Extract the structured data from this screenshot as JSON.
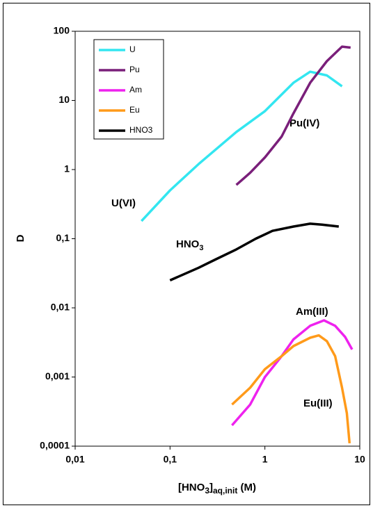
{
  "chart_data": {
    "type": "line",
    "log_x": true,
    "log_y": true,
    "xlabel": [
      "[HNO",
      "3",
      "]",
      "aq,init",
      " (M)"
    ],
    "ylabel": "D",
    "xlim": [
      0.01,
      10
    ],
    "xticks": [
      {
        "value": 0.01,
        "label": "0,01"
      },
      {
        "value": 0.1,
        "label": "0,1"
      },
      1,
      10
    ],
    "ylim": [
      0.0001,
      100
    ],
    "yticks": [
      {
        "value": 0.0001,
        "label": "0,0001"
      },
      {
        "value": 0.001,
        "label": "0,001"
      },
      {
        "value": 0.01,
        "label": "0,01"
      },
      {
        "value": 0.1,
        "label": "0,1"
      },
      1,
      10,
      100
    ],
    "annotations": [
      "U(VI)",
      "Pu(IV)",
      [
        "HNO",
        "3"
      ],
      "Am(III)",
      "Eu(III)"
    ],
    "series": [
      {
        "name": "U",
        "color": "#33e6f0",
        "x": [
          0.05,
          0.1,
          0.2,
          0.5,
          1,
          2,
          3,
          4.5,
          6.5
        ],
        "values": [
          0.18,
          0.5,
          1.2,
          3.5,
          7,
          18,
          26,
          23,
          16
        ]
      },
      {
        "name": "Pu",
        "color": "#7a1f7a",
        "x": [
          0.5,
          0.7,
          1,
          1.5,
          2,
          3,
          4.5,
          6.5,
          8
        ],
        "values": [
          0.6,
          0.9,
          1.5,
          3,
          6.5,
          18,
          37,
          60,
          58
        ]
      },
      {
        "name": "Am",
        "color": "#ee22ee",
        "x": [
          0.45,
          0.7,
          1,
          1.5,
          2,
          3,
          4.2,
          5.5,
          7,
          8.3
        ],
        "values": [
          0.0002,
          0.0004,
          0.001,
          0.002,
          0.0035,
          0.0055,
          0.0066,
          0.0055,
          0.0038,
          0.0025
        ]
      },
      {
        "name": "Eu",
        "color": "#ff9a1a",
        "x": [
          0.45,
          0.7,
          1,
          1.5,
          2,
          3,
          3.7,
          4.5,
          5.5,
          6.5,
          7.3,
          7.8
        ],
        "values": [
          0.0004,
          0.0007,
          0.0013,
          0.002,
          0.0028,
          0.0037,
          0.004,
          0.0033,
          0.002,
          0.0007,
          0.0003,
          0.00011
        ]
      },
      {
        "name": "HNO3",
        "color": "#000000",
        "x": [
          0.1,
          0.2,
          0.3,
          0.5,
          0.8,
          1.2,
          2,
          3,
          4,
          6
        ],
        "values": [
          0.025,
          0.038,
          0.05,
          0.07,
          0.1,
          0.13,
          0.15,
          0.165,
          0.16,
          0.15
        ]
      }
    ]
  }
}
